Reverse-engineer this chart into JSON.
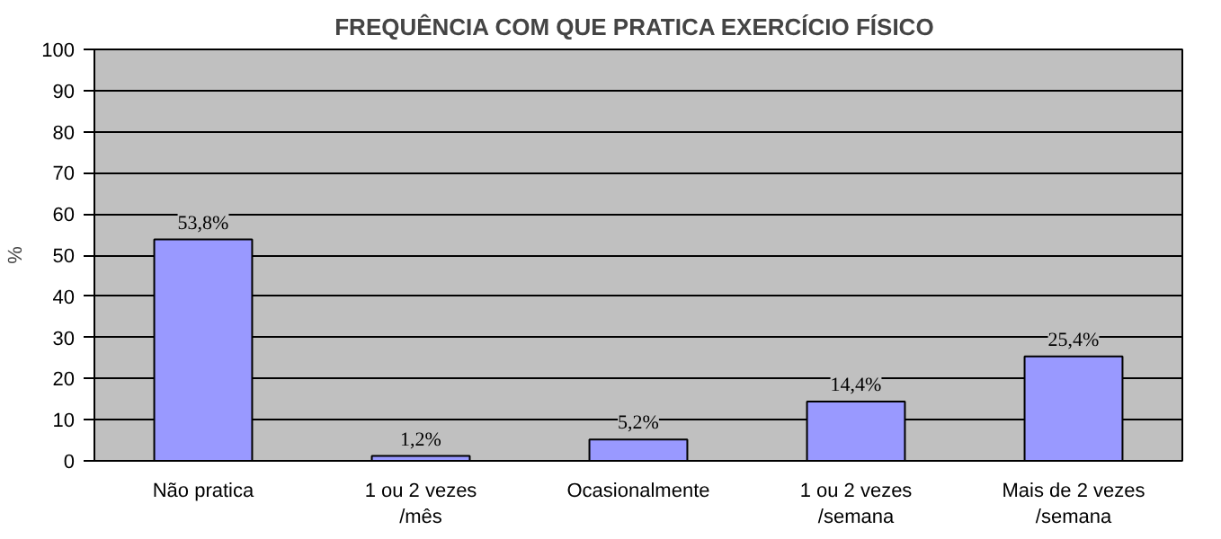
{
  "chart_data": {
    "type": "bar",
    "title": "FREQUÊNCIA COM QUE  PRATICA EXERCÍCIO FÍSICO",
    "ylabel": "%",
    "categories": [
      "Não pratica",
      "1 ou 2 vezes\n/mês",
      "Ocasionalmente",
      "1 ou 2 vezes\n/semana",
      "Mais de 2 vezes\n/semana"
    ],
    "values": [
      53.8,
      1.2,
      5.2,
      14.4,
      25.4
    ],
    "value_labels": [
      "53,8%",
      "1,2%",
      "5,2%",
      "14,4%",
      "25,4%"
    ],
    "color": "#9999ff",
    "ylim": [
      0,
      100
    ],
    "yticks": [
      0,
      10,
      20,
      30,
      40,
      50,
      60,
      70,
      80,
      90,
      100
    ],
    "grid": "y"
  }
}
